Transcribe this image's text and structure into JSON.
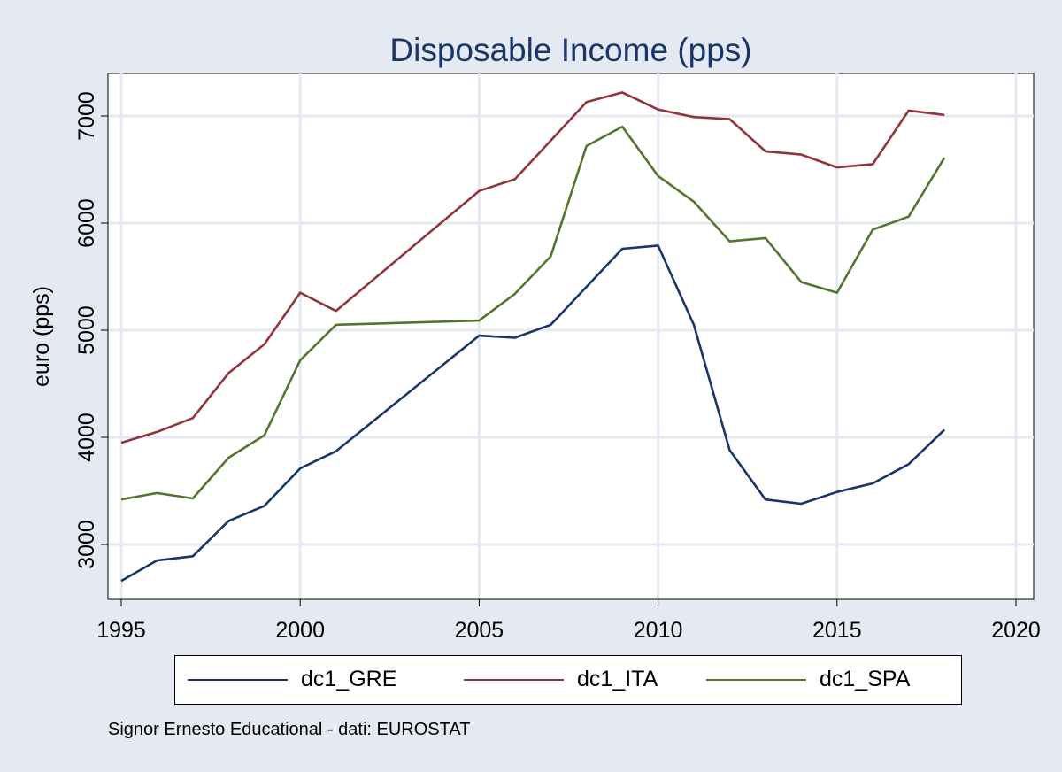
{
  "chart_data": {
    "type": "line",
    "title": "Disposable Income (pps)",
    "xlabel": "",
    "ylabel": "euro (pps)",
    "xlim": [
      1995,
      2020
    ],
    "ylim": [
      2500,
      7400
    ],
    "x_ticks": [
      1995,
      2000,
      2005,
      2010,
      2015,
      2020
    ],
    "y_ticks": [
      3000,
      4000,
      5000,
      6000,
      7000
    ],
    "grid": true,
    "legend_position": "bottom",
    "x": [
      1995,
      1996,
      1997,
      1998,
      1999,
      2000,
      2001,
      2005,
      2006,
      2007,
      2008,
      2009,
      2010,
      2011,
      2012,
      2013,
      2014,
      2015,
      2016,
      2017,
      2018
    ],
    "series": [
      {
        "name": "dc1_GRE",
        "color": "#1a3668",
        "values": [
          2660,
          2850,
          2890,
          3220,
          3360,
          3710,
          3870,
          4950,
          4930,
          5050,
          null,
          5760,
          5790,
          5050,
          3880,
          3420,
          3380,
          3490,
          3570,
          3750,
          4070
        ],
        "points": [
          [
            1995,
            2660
          ],
          [
            1996,
            2850
          ],
          [
            1997,
            2890
          ],
          [
            1998,
            3220
          ],
          [
            1999,
            3360
          ],
          [
            2000,
            3710
          ],
          [
            2001,
            3870
          ],
          [
            2005,
            4950
          ],
          [
            2006,
            4930
          ],
          [
            2007,
            5050
          ],
          [
            2009,
            5760
          ],
          [
            2010,
            5790
          ],
          [
            2011,
            5050
          ],
          [
            2012,
            3880
          ],
          [
            2013,
            3420
          ],
          [
            2014,
            3380
          ],
          [
            2015,
            3490
          ],
          [
            2016,
            3570
          ],
          [
            2017,
            3750
          ],
          [
            2018,
            4070
          ]
        ]
      },
      {
        "name": "dc1_ITA",
        "color": "#90353b",
        "values": [
          3950,
          4050,
          4180,
          4600,
          4870,
          5350,
          5180,
          6300,
          6410,
          null,
          7130,
          7220,
          7060,
          6990,
          6970,
          6670,
          6640,
          6520,
          6550,
          7050,
          7010
        ],
        "points": [
          [
            1995,
            3950
          ],
          [
            1996,
            4050
          ],
          [
            1997,
            4180
          ],
          [
            1998,
            4600
          ],
          [
            1999,
            4870
          ],
          [
            2000,
            5350
          ],
          [
            2001,
            5180
          ],
          [
            2005,
            6300
          ],
          [
            2006,
            6410
          ],
          [
            2008,
            7130
          ],
          [
            2009,
            7220
          ],
          [
            2010,
            7060
          ],
          [
            2011,
            6990
          ],
          [
            2012,
            6970
          ],
          [
            2013,
            6670
          ],
          [
            2014,
            6640
          ],
          [
            2015,
            6520
          ],
          [
            2016,
            6550
          ],
          [
            2017,
            7050
          ],
          [
            2018,
            7010
          ]
        ]
      },
      {
        "name": "dc1_SPA",
        "color": "#55752f",
        "values": [
          3420,
          3480,
          3430,
          3810,
          4020,
          4720,
          5050,
          5090,
          5340,
          5690,
          6720,
          6900,
          6440,
          6200,
          5830,
          5860,
          5450,
          5350,
          5940,
          6060,
          6610
        ],
        "points": [
          [
            1995,
            3420
          ],
          [
            1996,
            3480
          ],
          [
            1997,
            3430
          ],
          [
            1998,
            3810
          ],
          [
            1999,
            4020
          ],
          [
            2000,
            4720
          ],
          [
            2001,
            5050
          ],
          [
            2005,
            5090
          ],
          [
            2006,
            5340
          ],
          [
            2007,
            5690
          ],
          [
            2008,
            6720
          ],
          [
            2009,
            6900
          ],
          [
            2010,
            6440
          ],
          [
            2011,
            6200
          ],
          [
            2012,
            5830
          ],
          [
            2013,
            5860
          ],
          [
            2014,
            5450
          ],
          [
            2015,
            5350
          ],
          [
            2016,
            5940
          ],
          [
            2017,
            6060
          ],
          [
            2018,
            6610
          ]
        ]
      }
    ]
  },
  "legend": {
    "items": [
      {
        "label": "dc1_GRE"
      },
      {
        "label": "dc1_ITA"
      },
      {
        "label": "dc1_SPA"
      }
    ]
  },
  "note": "Signor Ernesto Educational - dati: EUROSTAT",
  "colors": {
    "background": "#e5e9f2",
    "plot_area": "#ffffff",
    "grid": "#e5e9f2",
    "title": "#1a3668"
  }
}
